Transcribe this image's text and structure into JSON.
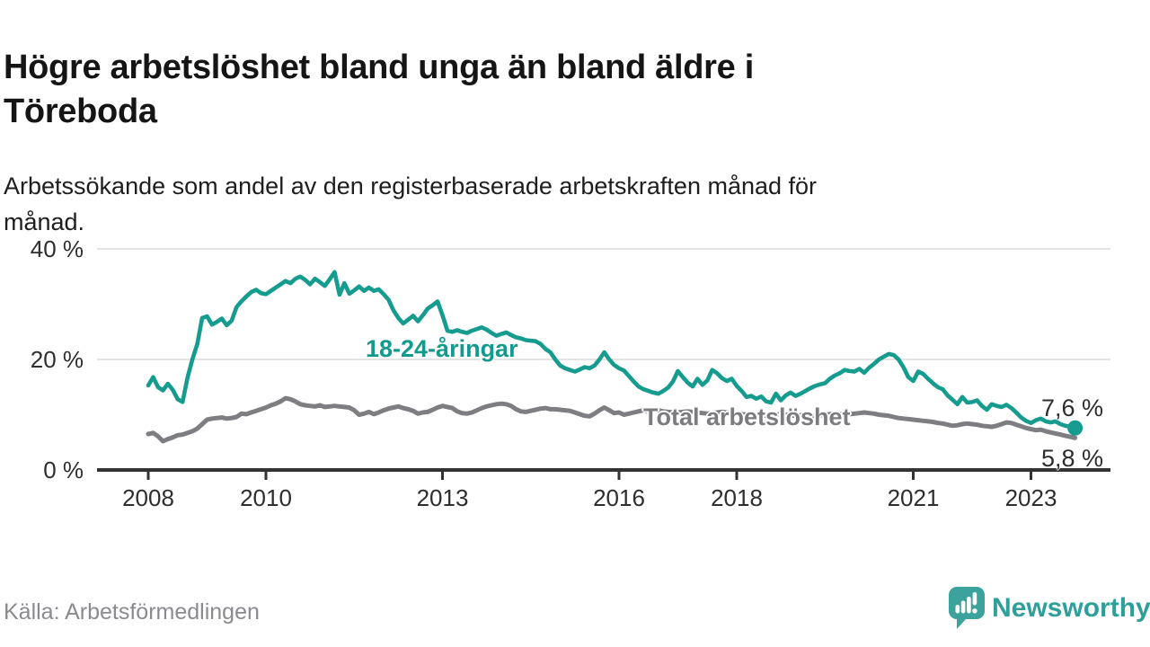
{
  "chart_data": {
    "type": "line",
    "title": "Högre arbetslöshet bland unga än bland äldre i Töreboda",
    "title_lines": [
      "Högre arbetslöshet bland unga än bland äldre i",
      "Töreboda"
    ],
    "subtitle": "Arbetssökande som andel av den registerbaserade arbetskraften månad för månad.",
    "subtitle_lines": [
      "Arbetssökande som andel av den registerbaserade arbetskraften månad för",
      "månad."
    ],
    "source": "Källa: Arbetsförmedlingen",
    "x_start_year": 2008,
    "frequency": "monthly",
    "x_end": "2023-10",
    "xlabel": "",
    "ylabel": "",
    "ylim": [
      0,
      42
    ],
    "grid": "horizontal",
    "legend": "inline-labels",
    "x_ticks": [
      2008,
      2010,
      2013,
      2016,
      2018,
      2021,
      2023
    ],
    "y_ticks": [
      {
        "value": 0,
        "label": "0 %"
      },
      {
        "value": 20,
        "label": "20 %"
      },
      {
        "value": 40,
        "label": "40 %"
      }
    ],
    "series": [
      {
        "name": "18-24-åringar",
        "color": "#169b8f",
        "end_label": "7,6 %",
        "end_value": 7.6,
        "values": [
          15.3,
          16.8,
          15.0,
          14.4,
          15.6,
          14.5,
          12.8,
          12.3,
          16.7,
          20.0,
          22.8,
          27.5,
          27.8,
          26.3,
          26.8,
          27.4,
          26.2,
          27.0,
          29.5,
          30.5,
          31.4,
          32.2,
          32.6,
          32.0,
          31.8,
          32.4,
          33.0,
          33.6,
          34.2,
          33.8,
          34.6,
          35.0,
          34.4,
          33.6,
          34.6,
          34.0,
          33.3,
          34.5,
          35.8,
          31.7,
          33.8,
          31.9,
          32.5,
          33.2,
          32.4,
          33.0,
          32.4,
          32.7,
          31.8,
          30.8,
          28.9,
          27.5,
          26.5,
          27.2,
          27.9,
          26.9,
          28.0,
          29.2,
          29.8,
          30.5,
          28.0,
          25.2,
          25.0,
          25.3,
          25.0,
          24.8,
          25.2,
          25.5,
          25.8,
          25.4,
          24.8,
          24.3,
          24.6,
          24.9,
          24.4,
          24.0,
          23.8,
          23.5,
          23.4,
          23.3,
          22.8,
          21.9,
          21.3,
          20.0,
          18.9,
          18.4,
          18.1,
          17.8,
          18.2,
          18.6,
          18.4,
          18.9,
          20.0,
          21.3,
          20.0,
          19.0,
          18.4,
          18.0,
          17.0,
          16.0,
          15.1,
          14.6,
          14.3,
          14.0,
          13.8,
          14.3,
          14.9,
          16.0,
          17.9,
          16.8,
          15.8,
          15.1,
          16.5,
          15.4,
          16.2,
          18.1,
          17.5,
          16.6,
          16.1,
          16.5,
          15.2,
          14.3,
          13.2,
          13.4,
          12.9,
          13.3,
          12.4,
          12.2,
          13.8,
          12.6,
          13.5,
          14.0,
          13.4,
          13.8,
          14.3,
          14.8,
          15.2,
          15.5,
          15.7,
          16.5,
          17.1,
          17.5,
          18.1,
          17.9,
          17.8,
          18.3,
          17.6,
          18.5,
          19.2,
          20.0,
          20.5,
          21.0,
          20.8,
          20.0,
          18.6,
          16.8,
          16.1,
          17.8,
          17.4,
          16.5,
          15.7,
          15.0,
          14.6,
          13.5,
          12.7,
          11.9,
          13.2,
          12.2,
          12.3,
          12.6,
          11.6,
          10.9,
          11.9,
          11.6,
          11.4,
          11.8,
          11.2,
          10.4,
          9.5,
          8.9,
          8.5,
          9.0,
          9.3,
          8.8,
          8.6,
          8.8,
          8.3,
          8.0,
          7.8,
          7.6
        ]
      },
      {
        "name": "Total arbetslöshet",
        "color": "#7d7d82",
        "end_label": "5,8 %",
        "end_value": 5.8,
        "values": [
          6.5,
          6.7,
          6.1,
          5.2,
          5.6,
          5.9,
          6.3,
          6.4,
          6.7,
          7.0,
          7.5,
          8.3,
          9.1,
          9.3,
          9.4,
          9.5,
          9.3,
          9.4,
          9.6,
          10.2,
          10.1,
          10.4,
          10.7,
          11.0,
          11.3,
          11.7,
          12.0,
          12.4,
          13.0,
          12.8,
          12.4,
          11.9,
          11.7,
          11.6,
          11.5,
          11.7,
          11.4,
          11.5,
          11.6,
          11.5,
          11.4,
          11.3,
          10.8,
          10.0,
          10.2,
          10.5,
          10.1,
          10.4,
          10.8,
          11.1,
          11.3,
          11.5,
          11.2,
          11.0,
          10.7,
          10.2,
          10.4,
          10.5,
          10.9,
          11.3,
          11.6,
          11.4,
          11.2,
          10.6,
          10.3,
          10.2,
          10.4,
          10.8,
          11.2,
          11.5,
          11.7,
          11.9,
          12.0,
          11.9,
          11.6,
          11.0,
          10.6,
          10.5,
          10.7,
          10.9,
          11.1,
          11.2,
          11.0,
          11.0,
          10.9,
          10.8,
          10.7,
          10.4,
          10.1,
          9.8,
          9.7,
          10.2,
          10.8,
          11.3,
          10.8,
          10.3,
          10.4,
          10.0,
          10.2,
          10.4,
          10.6,
          10.8,
          10.5,
          10.7,
          10.8,
          10.6,
          10.5,
          10.4,
          10.4,
          10.5,
          10.6,
          10.5,
          10.4,
          10.3,
          10.2,
          10.3,
          10.4,
          10.5,
          10.4,
          10.3,
          10.2,
          10.1,
          10.0,
          10.1,
          10.0,
          9.9,
          9.8,
          9.9,
          10.0,
          10.1,
          10.0,
          9.9,
          9.8,
          9.9,
          10.0,
          9.9,
          9.8,
          9.9,
          10.0,
          10.1,
          10.2,
          10.1,
          10.0,
          10.1,
          10.2,
          10.3,
          10.4,
          10.3,
          10.2,
          10.0,
          9.9,
          9.8,
          9.6,
          9.4,
          9.3,
          9.2,
          9.1,
          9.0,
          8.9,
          8.8,
          8.7,
          8.5,
          8.4,
          8.2,
          8.0,
          8.1,
          8.3,
          8.4,
          8.3,
          8.2,
          8.0,
          7.9,
          7.8,
          8.0,
          8.3,
          8.6,
          8.5,
          8.2,
          7.9,
          7.6,
          7.4,
          7.2,
          7.3,
          7.0,
          6.8,
          6.6,
          6.4,
          6.2,
          6.0,
          5.8
        ]
      }
    ]
  },
  "footer": {
    "logo_text": "Newsworthy"
  },
  "colors": {
    "accent_teal": "#169b8f",
    "series_gray": "#7d7d82",
    "axis": "#333333",
    "gridline": "#dcdcdc",
    "logo_teal": "#3ba39c"
  }
}
